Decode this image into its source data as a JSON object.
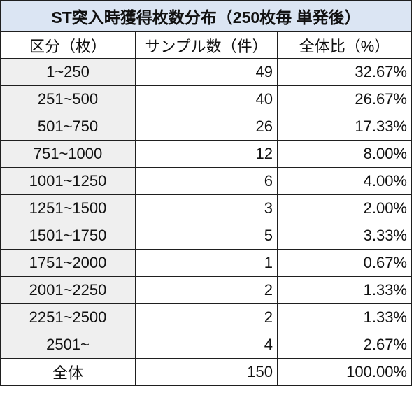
{
  "title": "ST突入時獲得枚数分布（250枚毎 単発後）",
  "headers": [
    "区分（枚）",
    "サンプル数（件）",
    "全体比（%）"
  ],
  "rows": [
    {
      "range": "1~250",
      "count": "49",
      "ratio": "32.67%"
    },
    {
      "range": "251~500",
      "count": "40",
      "ratio": "26.67%"
    },
    {
      "range": "501~750",
      "count": "26",
      "ratio": "17.33%"
    },
    {
      "range": "751~1000",
      "count": "12",
      "ratio": "8.00%"
    },
    {
      "range": "1001~1250",
      "count": "6",
      "ratio": "4.00%"
    },
    {
      "range": "1251~1500",
      "count": "3",
      "ratio": "2.00%"
    },
    {
      "range": "1501~1750",
      "count": "5",
      "ratio": "3.33%"
    },
    {
      "range": "1751~2000",
      "count": "1",
      "ratio": "0.67%"
    },
    {
      "range": "2001~2250",
      "count": "2",
      "ratio": "1.33%"
    },
    {
      "range": "2251~2500",
      "count": "2",
      "ratio": "1.33%"
    },
    {
      "range": "2501~",
      "count": "4",
      "ratio": "2.67%"
    }
  ],
  "total": {
    "range": "全体",
    "count": "150",
    "ratio": "100.00%"
  },
  "colors": {
    "title_bg": "#dbe5f3",
    "category_bg": "#efefef",
    "border": "#1f1f1f"
  }
}
